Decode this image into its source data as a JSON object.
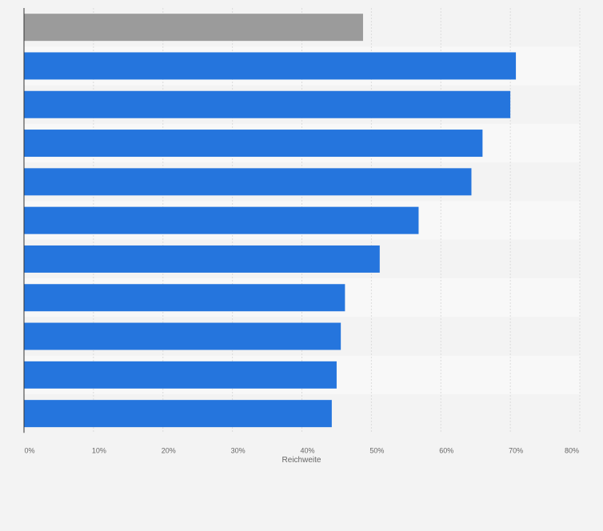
{
  "chart_data": {
    "type": "bar",
    "orientation": "horizontal",
    "categories": [
      "",
      "",
      "",
      "",
      "",
      "",
      "",
      "",
      "",
      "",
      ""
    ],
    "values": [
      48.8,
      70.8,
      70.0,
      66.0,
      64.4,
      56.8,
      51.2,
      46.2,
      45.6,
      45.0,
      44.3
    ],
    "bar_colors": [
      "#9b9b9b",
      "#2575dd",
      "#2575dd",
      "#2575dd",
      "#2575dd",
      "#2575dd",
      "#2575dd",
      "#2575dd",
      "#2575dd",
      "#2575dd",
      "#2575dd"
    ],
    "xlabel": "Reichweite",
    "xlim": [
      0,
      80
    ],
    "xticks": [
      0,
      10,
      20,
      30,
      40,
      50,
      60,
      70,
      80
    ],
    "xtick_labels": [
      "0%",
      "10%",
      "20%",
      "30%",
      "40%",
      "50%",
      "60%",
      "70%",
      "80%"
    ],
    "grid": true,
    "legend": "none"
  },
  "colors": {
    "background": "#f3f3f3",
    "band_light": "#f8f8f8",
    "band_dark": "#f3f3f3",
    "grid": "#dcdcdc",
    "axis": "#333333",
    "tick_text": "#666666"
  }
}
